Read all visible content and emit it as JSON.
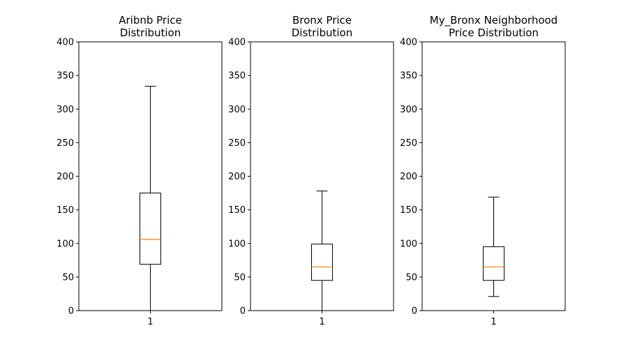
{
  "chart_data": [
    {
      "type": "box",
      "title": [
        "Aribnb Price",
        "Distribution"
      ],
      "categories": [
        "1"
      ],
      "ylim": [
        0,
        400
      ],
      "yticks": [
        0,
        50,
        100,
        150,
        200,
        250,
        300,
        350,
        400
      ],
      "box": {
        "whisker_low": 0,
        "q1": 69,
        "median": 106,
        "q3": 175,
        "whisker_high": 334
      },
      "grid": false
    },
    {
      "type": "box",
      "title": [
        "Bronx Price",
        "Distribution"
      ],
      "categories": [
        "1"
      ],
      "ylim": [
        0,
        400
      ],
      "yticks": [
        0,
        50,
        100,
        150,
        200,
        250,
        300,
        350,
        400
      ],
      "box": {
        "whisker_low": 0,
        "q1": 45,
        "median": 65,
        "q3": 99,
        "whisker_high": 178
      },
      "grid": false
    },
    {
      "type": "box",
      "title": [
        "My_Bronx Neighborhood",
        "Price Distribution"
      ],
      "categories": [
        "1"
      ],
      "ylim": [
        0,
        400
      ],
      "yticks": [
        0,
        50,
        100,
        150,
        200,
        250,
        300,
        350,
        400
      ],
      "box": {
        "whisker_low": 21,
        "q1": 45,
        "median": 65,
        "q3": 95,
        "whisker_high": 169
      },
      "grid": false
    }
  ],
  "colors": {
    "box": "#000000",
    "median": "#ff7f0e",
    "background": "#ffffff"
  }
}
